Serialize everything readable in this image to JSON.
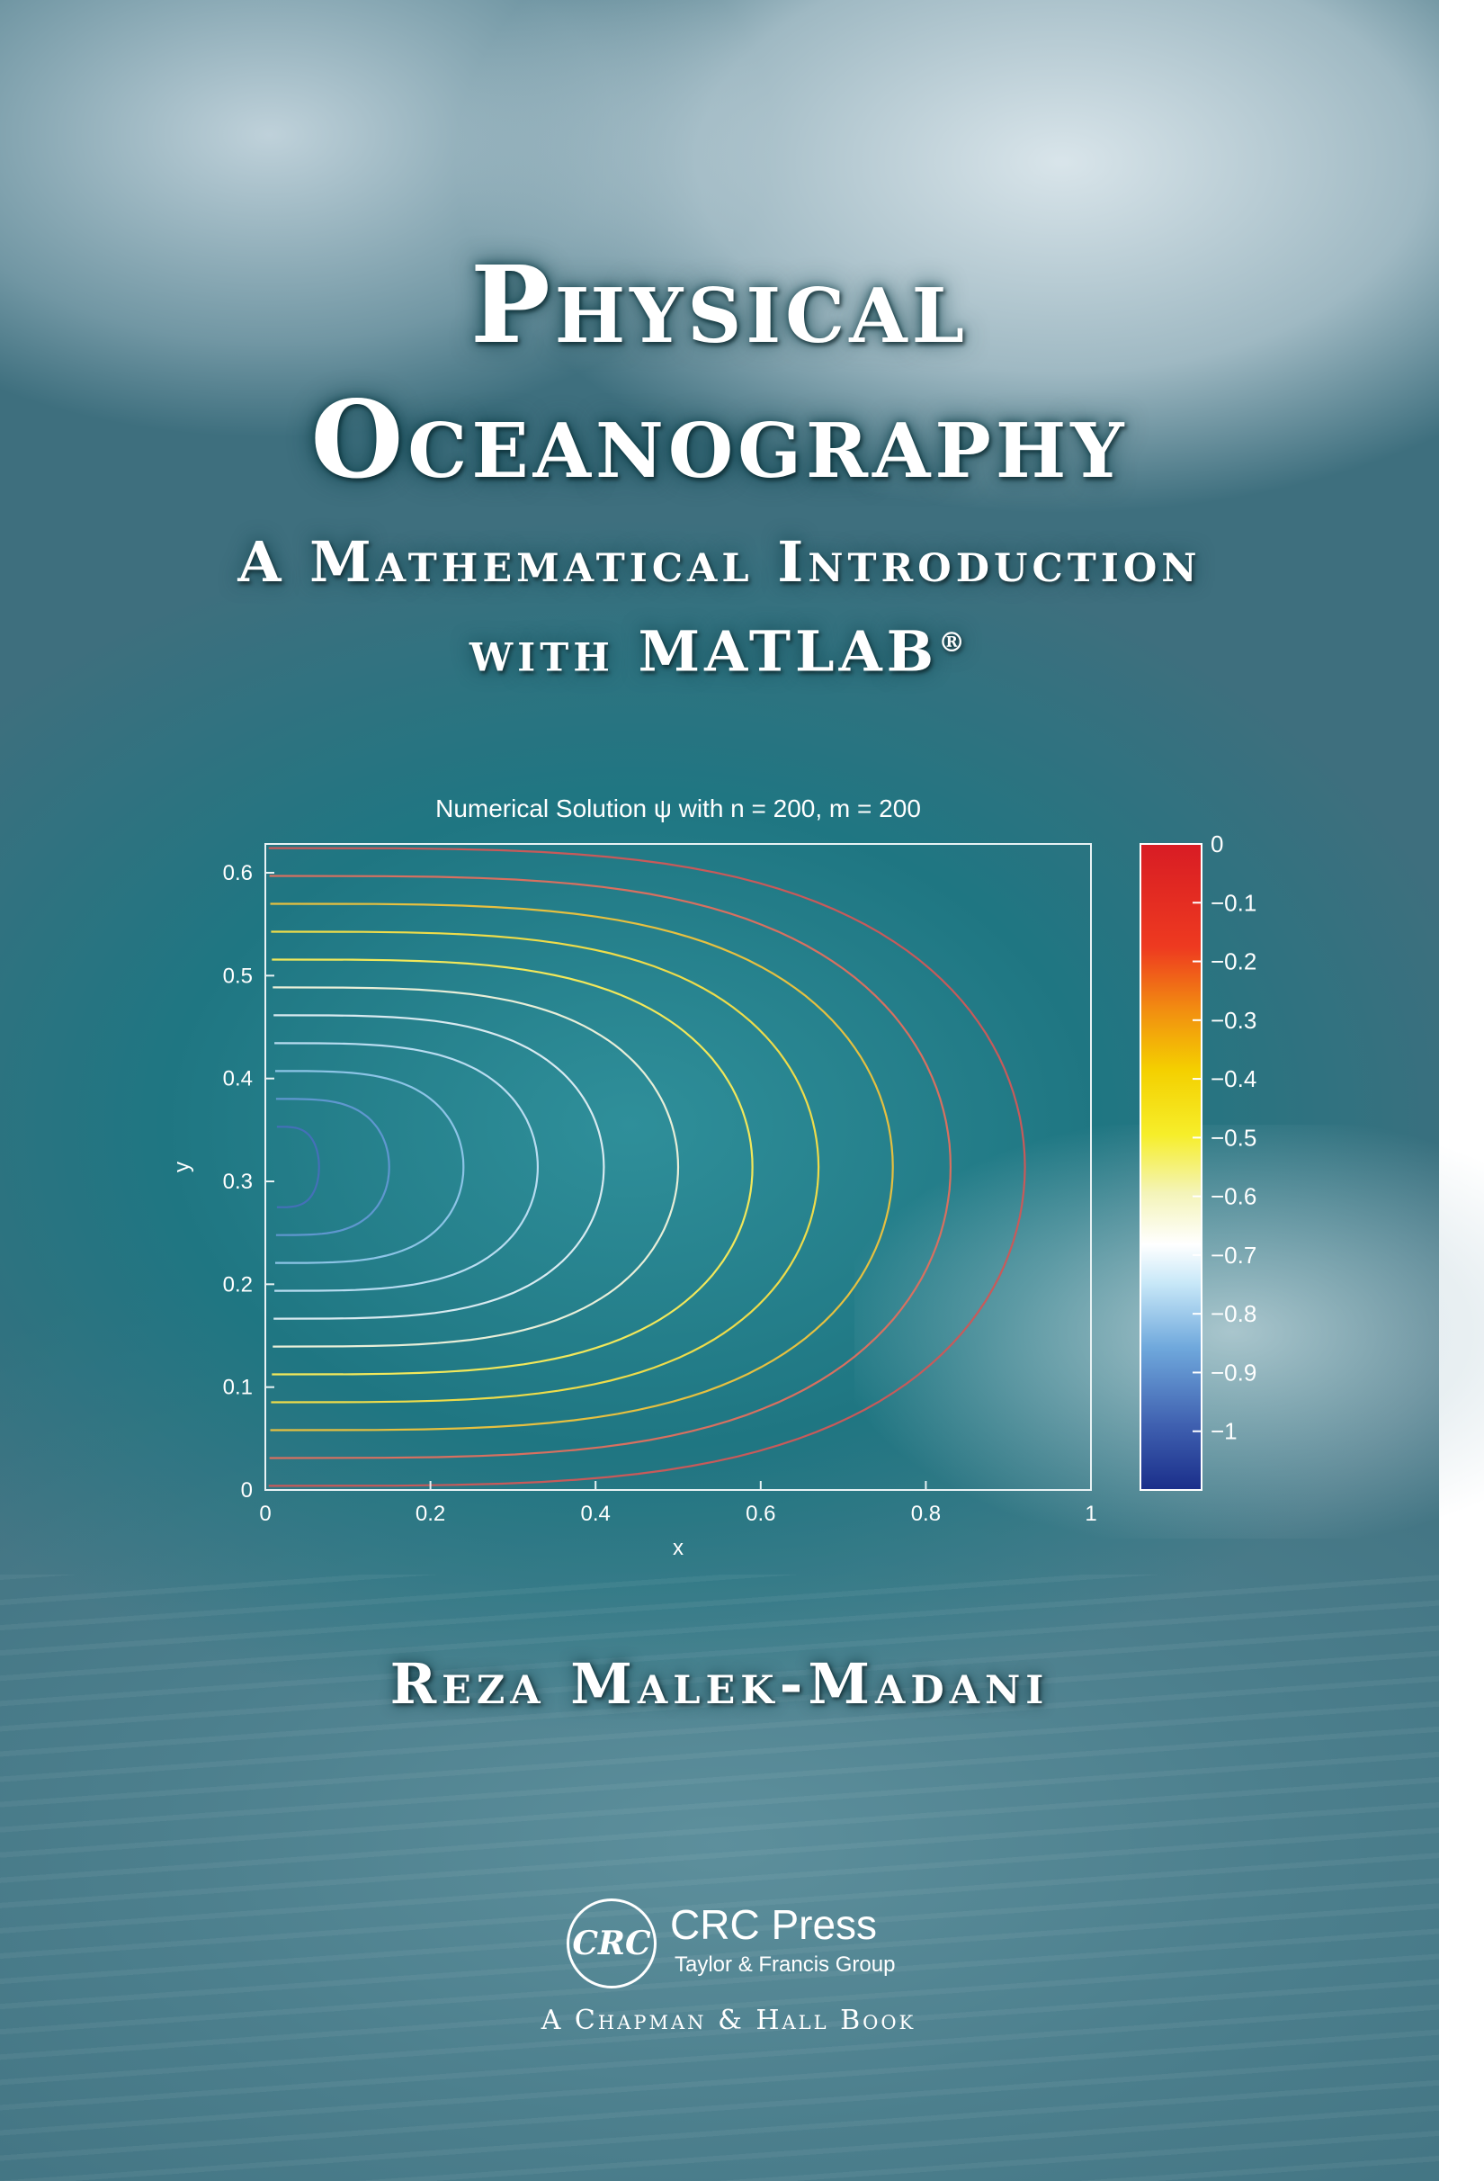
{
  "cover": {
    "title_line1": "Physical",
    "title_line2": "Oceanography",
    "subtitle_line1": "A Mathematical Introduction",
    "subtitle_line2": "with MATLAB",
    "registered_mark": "®",
    "author": "Reza Malek-Madani"
  },
  "publisher": {
    "logo_text": "CRC",
    "name": "CRC Press",
    "group": "Taylor & Francis Group",
    "imprint": "A Chapman & Hall Book"
  },
  "chart_data": {
    "type": "contour",
    "title": "Numerical Solution ψ with n = 200, m = 200",
    "xlabel": "x",
    "ylabel": "y",
    "xlim": [
      0,
      1
    ],
    "ylim": [
      0,
      0.628
    ],
    "xticks": [
      "0",
      "0.2",
      "0.4",
      "0.6",
      "0.8",
      "1"
    ],
    "yticks": [
      "0",
      "0.1",
      "0.2",
      "0.3",
      "0.4",
      "0.5",
      "0.6"
    ],
    "colorbar": {
      "range": [
        -1.1,
        0
      ],
      "ticks": [
        "0",
        "−0.1",
        "−0.2",
        "−0.3",
        "−0.4",
        "−0.5",
        "−0.6",
        "−0.7",
        "−0.8",
        "−0.9",
        "−1"
      ]
    },
    "contour_levels": [
      {
        "level": -0.05,
        "x_extent": 0.92,
        "color": "#c85a5a"
      },
      {
        "level": -0.15,
        "x_extent": 0.83,
        "color": "#d87060"
      },
      {
        "level": -0.25,
        "x_extent": 0.76,
        "color": "#e6c040"
      },
      {
        "level": -0.35,
        "x_extent": 0.67,
        "color": "#eedc4a"
      },
      {
        "level": -0.45,
        "x_extent": 0.59,
        "color": "#f2e85a"
      },
      {
        "level": -0.55,
        "x_extent": 0.5,
        "color": "#e8eed8"
      },
      {
        "level": -0.65,
        "x_extent": 0.41,
        "color": "#d8eaf0"
      },
      {
        "level": -0.75,
        "x_extent": 0.33,
        "color": "#b8dcf0"
      },
      {
        "level": -0.85,
        "x_extent": 0.24,
        "color": "#8cc4e6"
      },
      {
        "level": -0.95,
        "x_extent": 0.15,
        "color": "#5f97cf"
      },
      {
        "level": -1.05,
        "x_extent": 0.065,
        "color": "#4470b8"
      }
    ]
  },
  "colors": {
    "accent_text": "#ffffff",
    "ocean": "#1f7682"
  },
  "icons": {
    "publisher_logo": "crc-logo-icon"
  }
}
